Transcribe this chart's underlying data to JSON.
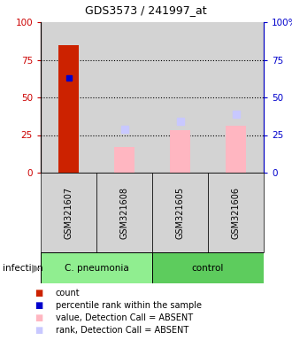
{
  "title": "GDS3573 / 241997_at",
  "samples": [
    "GSM321607",
    "GSM321608",
    "GSM321605",
    "GSM321606"
  ],
  "bar_values_red": [
    85,
    0,
    0,
    0
  ],
  "bar_values_pink": [
    0,
    17,
    28,
    31
  ],
  "dot_blue_dark": [
    63,
    null,
    null,
    null
  ],
  "dot_blue_light": [
    null,
    29,
    34,
    39
  ],
  "ylim": [
    0,
    100
  ],
  "yticks": [
    0,
    25,
    50,
    75,
    100
  ],
  "ytick_labels_left": [
    "0",
    "25",
    "50",
    "75",
    "100"
  ],
  "ytick_labels_right": [
    "0",
    "25",
    "50",
    "75",
    "100%"
  ],
  "left_axis_color": "#cc0000",
  "right_axis_color": "#0000cc",
  "group_labels": [
    "C. pneumonia",
    "control"
  ],
  "group_colors": [
    "#90EE90",
    "#5DCC5D"
  ],
  "legend_items": [
    {
      "color": "#cc2200",
      "label": "count"
    },
    {
      "color": "#0000cc",
      "label": "percentile rank within the sample"
    },
    {
      "color": "#FFB6C1",
      "label": "value, Detection Call = ABSENT"
    },
    {
      "color": "#c8c8ff",
      "label": "rank, Detection Call = ABSENT"
    }
  ],
  "col_bg_color": "#d3d3d3",
  "background_color": "#ffffff",
  "grid_color": "black"
}
